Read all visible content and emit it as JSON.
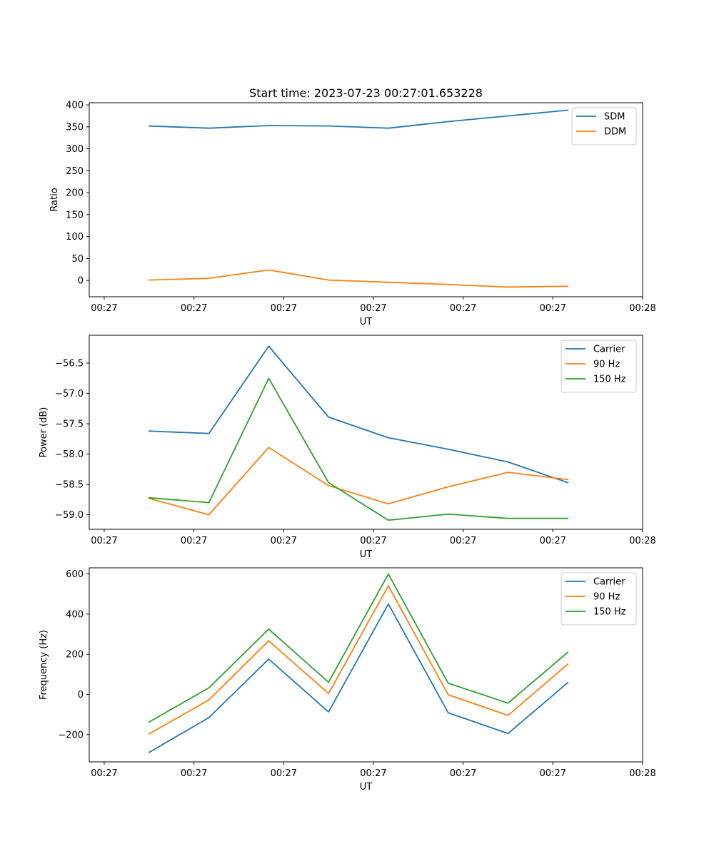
{
  "chart_data": [
    {
      "type": "line",
      "title": "Start time: 2023-07-23 00:27:01.653228",
      "xlabel": "UT",
      "ylabel": "Ratio",
      "xlim": [
        0,
        9.25
      ],
      "x": [
        1,
        2,
        3,
        4,
        5,
        6,
        7,
        8
      ],
      "x_ticks": [
        0.25,
        1.75,
        3.25,
        4.75,
        6.25,
        7.75,
        9.25
      ],
      "x_tick_labels": [
        "00:27",
        "00:27",
        "00:27",
        "00:27",
        "00:27",
        "00:27",
        "00:28"
      ],
      "ylim": [
        -37,
        405
      ],
      "y_ticks": [
        0,
        50,
        100,
        150,
        200,
        250,
        300,
        350,
        400
      ],
      "y_tick_labels": [
        "0",
        "50",
        "100",
        "150",
        "200",
        "250",
        "300",
        "350",
        "400"
      ],
      "legend_position": "top-right",
      "grid": false,
      "series": [
        {
          "name": "SDM",
          "color": "#1f77b4",
          "values": [
            352,
            347,
            353,
            352,
            347,
            362,
            375,
            388
          ]
        },
        {
          "name": "DDM",
          "color": "#ff7f0e",
          "values": [
            1,
            5,
            24,
            1,
            -4,
            -9,
            -15,
            -13
          ]
        }
      ]
    },
    {
      "type": "line",
      "title": "",
      "xlabel": "UT",
      "ylabel": "Power (dB)",
      "xlim": [
        0,
        9.25
      ],
      "x": [
        1,
        2,
        3,
        4,
        5,
        6,
        7,
        8
      ],
      "x_ticks": [
        0.25,
        1.75,
        3.25,
        4.75,
        6.25,
        7.75,
        9.25
      ],
      "x_tick_labels": [
        "00:27",
        "00:27",
        "00:27",
        "00:27",
        "00:27",
        "00:27",
        "00:28"
      ],
      "ylim": [
        -59.24,
        -56.04
      ],
      "y_ticks": [
        -59.0,
        -58.5,
        -58.0,
        -57.5,
        -57.0,
        -56.5
      ],
      "y_tick_labels": [
        "−59.0",
        "−58.5",
        "−58.0",
        "−57.5",
        "−57.0",
        "−56.5"
      ],
      "legend_position": "top-right",
      "grid": false,
      "series": [
        {
          "name": "Carrier",
          "color": "#1f77b4",
          "values": [
            -57.62,
            -57.66,
            -56.22,
            -57.39,
            -57.73,
            -57.92,
            -58.13,
            -58.47
          ]
        },
        {
          "name": "90 Hz",
          "color": "#ff7f0e",
          "values": [
            -58.73,
            -59.0,
            -57.89,
            -58.52,
            -58.82,
            -58.54,
            -58.3,
            -58.42
          ]
        },
        {
          "name": "150 Hz",
          "color": "#2ca02c",
          "values": [
            -58.72,
            -58.8,
            -56.75,
            -58.47,
            -59.09,
            -58.99,
            -59.06,
            -59.06
          ]
        }
      ]
    },
    {
      "type": "line",
      "title": "",
      "xlabel": "UT",
      "ylabel": "Frequency (Hz)",
      "xlim": [
        0,
        9.25
      ],
      "x": [
        1,
        2,
        3,
        4,
        5,
        6,
        7,
        8
      ],
      "x_ticks": [
        0.25,
        1.75,
        3.25,
        4.75,
        6.25,
        7.75,
        9.25
      ],
      "x_tick_labels": [
        "00:27",
        "00:27",
        "00:27",
        "00:27",
        "00:27",
        "00:27",
        "00:28"
      ],
      "ylim": [
        -335,
        630
      ],
      "y_ticks": [
        -200,
        0,
        200,
        400,
        600
      ],
      "y_tick_labels": [
        "−200",
        "0",
        "200",
        "400",
        "600"
      ],
      "legend_position": "top-right",
      "grid": false,
      "series": [
        {
          "name": "Carrier",
          "color": "#1f77b4",
          "values": [
            -288,
            -115,
            176,
            -87,
            450,
            -91,
            -194,
            59
          ]
        },
        {
          "name": "90 Hz",
          "color": "#ff7f0e",
          "values": [
            -196,
            -27,
            267,
            5,
            540,
            -1,
            -104,
            151
          ]
        },
        {
          "name": "150 Hz",
          "color": "#2ca02c",
          "values": [
            -137,
            33,
            325,
            61,
            599,
            56,
            -43,
            210
          ]
        }
      ]
    }
  ]
}
